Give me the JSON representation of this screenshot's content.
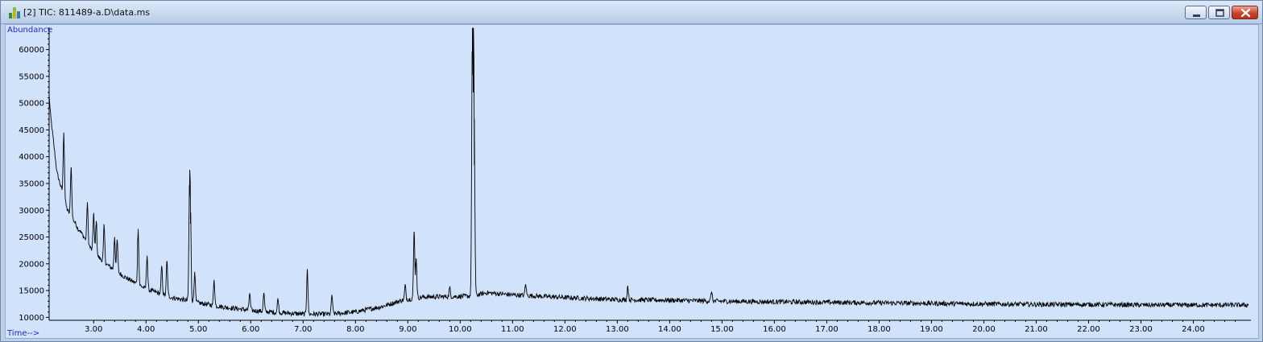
{
  "window": {
    "title": "[2] TIC: 811489-a.D\\data.ms",
    "icon": "chromatogram-app-icon",
    "buttons": [
      "minimize-icon",
      "maximize-icon",
      "close-icon"
    ]
  },
  "chart_data": {
    "type": "line",
    "ylabel": "Abundance",
    "xlabel": "Time-->",
    "xlim": [
      2.15,
      25.1
    ],
    "ylim": [
      9600,
      64000
    ],
    "x_ticks": [
      "3.00",
      "4.00",
      "5.00",
      "6.00",
      "7.00",
      "8.00",
      "9.00",
      "10.00",
      "11.00",
      "12.00",
      "13.00",
      "14.00",
      "15.00",
      "16.00",
      "17.00",
      "18.00",
      "19.00",
      "20.00",
      "21.00",
      "22.00",
      "23.00",
      "24.00"
    ],
    "y_ticks": [
      "10000",
      "15000",
      "20000",
      "25000",
      "30000",
      "35000",
      "40000",
      "45000",
      "50000",
      "55000",
      "60000"
    ],
    "line_color": "#000000",
    "background_color": "#d1e2fb",
    "series": [
      {
        "baseline": [
          [
            2.15,
            50000
          ],
          [
            2.3,
            37000
          ],
          [
            2.5,
            30000
          ],
          [
            2.75,
            26000
          ],
          [
            3.0,
            22000
          ],
          [
            3.3,
            19500
          ],
          [
            3.6,
            17500
          ],
          [
            4.0,
            15300
          ],
          [
            4.5,
            13700
          ],
          [
            5.0,
            12700
          ],
          [
            5.5,
            11900
          ],
          [
            6.0,
            11300
          ],
          [
            6.5,
            10900
          ],
          [
            7.0,
            10600
          ],
          [
            7.5,
            10600
          ],
          [
            8.0,
            11000
          ],
          [
            8.5,
            12000
          ],
          [
            8.9,
            13200
          ],
          [
            9.3,
            13800
          ],
          [
            10.0,
            13900
          ],
          [
            10.25,
            14000
          ],
          [
            10.5,
            14600
          ],
          [
            11.0,
            14200
          ],
          [
            12.0,
            13700
          ],
          [
            13.0,
            13300
          ],
          [
            14.0,
            13200
          ],
          [
            15.0,
            13000
          ],
          [
            16.0,
            12900
          ],
          [
            17.0,
            12800
          ],
          [
            18.0,
            12700
          ],
          [
            19.0,
            12600
          ],
          [
            20.0,
            12500
          ],
          [
            21.0,
            12400
          ],
          [
            22.0,
            12400
          ],
          [
            23.0,
            12300
          ],
          [
            24.0,
            12300
          ],
          [
            25.0,
            12300
          ]
        ],
        "peaks": [
          [
            2.15,
            51500
          ],
          [
            2.43,
            44500
          ],
          [
            2.57,
            38000
          ],
          [
            2.7,
            26500
          ],
          [
            2.88,
            31500
          ],
          [
            3.0,
            29500
          ],
          [
            3.05,
            28000
          ],
          [
            3.2,
            27000
          ],
          [
            3.4,
            25000
          ],
          [
            3.45,
            24500
          ],
          [
            3.85,
            26500
          ],
          [
            4.02,
            21500
          ],
          [
            4.3,
            19500
          ],
          [
            4.4,
            20500
          ],
          [
            4.83,
            32500
          ],
          [
            4.85,
            27500
          ],
          [
            4.93,
            18500
          ],
          [
            5.3,
            17000
          ],
          [
            5.98,
            14500
          ],
          [
            6.25,
            14500
          ],
          [
            6.52,
            13500
          ],
          [
            7.08,
            19000
          ],
          [
            7.55,
            14200
          ],
          [
            8.95,
            16000
          ],
          [
            9.12,
            26000
          ],
          [
            9.16,
            21000
          ],
          [
            9.8,
            15500
          ],
          [
            10.23,
            55300
          ],
          [
            10.25,
            52000
          ],
          [
            10.27,
            38500
          ],
          [
            11.25,
            16200
          ],
          [
            13.2,
            15800
          ],
          [
            14.8,
            14800
          ]
        ]
      }
    ]
  }
}
